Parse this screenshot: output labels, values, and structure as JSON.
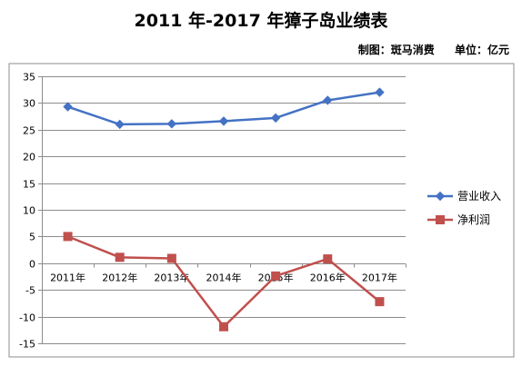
{
  "header": {
    "title": "2011 年-2017 年獐子岛业绩表",
    "maker": "制图：斑马消费",
    "unit": "单位：亿元"
  },
  "chart_data": {
    "type": "line",
    "title": "2011 年-2017 年獐子岛业绩表",
    "categories": [
      "2011年",
      "2012年",
      "2013年",
      "2014年",
      "2015年",
      "2016年",
      "2017年"
    ],
    "ylim": [
      -15,
      35
    ],
    "yticks": [
      35,
      30,
      25,
      20,
      15,
      10,
      5,
      0,
      -5,
      -10,
      -15
    ],
    "grid": true,
    "legend_position": "right",
    "series": [
      {
        "name": "营业收入",
        "values": [
          29.3,
          26.0,
          26.1,
          26.6,
          27.2,
          30.5,
          32.0
        ],
        "color": "#4472c4",
        "marker": "diamond"
      },
      {
        "name": "净利润",
        "values": [
          5.0,
          1.1,
          0.9,
          -11.9,
          -2.4,
          0.8,
          -7.2
        ],
        "color": "#c0504d",
        "marker": "square"
      }
    ]
  }
}
